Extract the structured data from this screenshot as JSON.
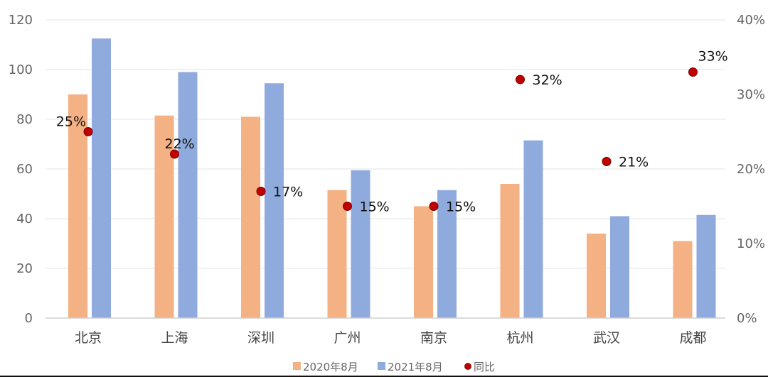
{
  "chart_data": {
    "type": "bar",
    "categories": [
      "北京",
      "上海",
      "深圳",
      "广州",
      "南京",
      "杭州",
      "武汉",
      "成都"
    ],
    "series": [
      {
        "name": "2020年8月",
        "kind": "bar",
        "axis": "left",
        "color": "#f4b183",
        "values": [
          90,
          81.5,
          81,
          51.5,
          45,
          54,
          34,
          31
        ]
      },
      {
        "name": "2021年8月",
        "kind": "bar",
        "axis": "left",
        "color": "#8faadc",
        "values": [
          112.5,
          99,
          94.5,
          59.5,
          51.5,
          71.5,
          41,
          41.5
        ]
      },
      {
        "name": "同比",
        "kind": "scatter",
        "axis": "right",
        "color": "#c00000",
        "values": [
          25,
          22,
          17,
          15,
          15,
          32,
          21,
          33
        ],
        "labels": [
          "25%",
          "22%",
          "17%",
          "15%",
          "15%",
          "32%",
          "21%",
          "33%"
        ]
      }
    ],
    "left_axis": {
      "ylim": [
        0,
        120
      ],
      "ticks": [
        "0",
        "20",
        "40",
        "60",
        "80",
        "100",
        "120"
      ]
    },
    "right_axis": {
      "ylim": [
        0,
        40
      ],
      "ticks": [
        "0%",
        "10%",
        "20%",
        "30%",
        "40%"
      ]
    },
    "grid": true,
    "legend": "bottom-center",
    "title": "",
    "xlabel": "",
    "ylabel": ""
  }
}
